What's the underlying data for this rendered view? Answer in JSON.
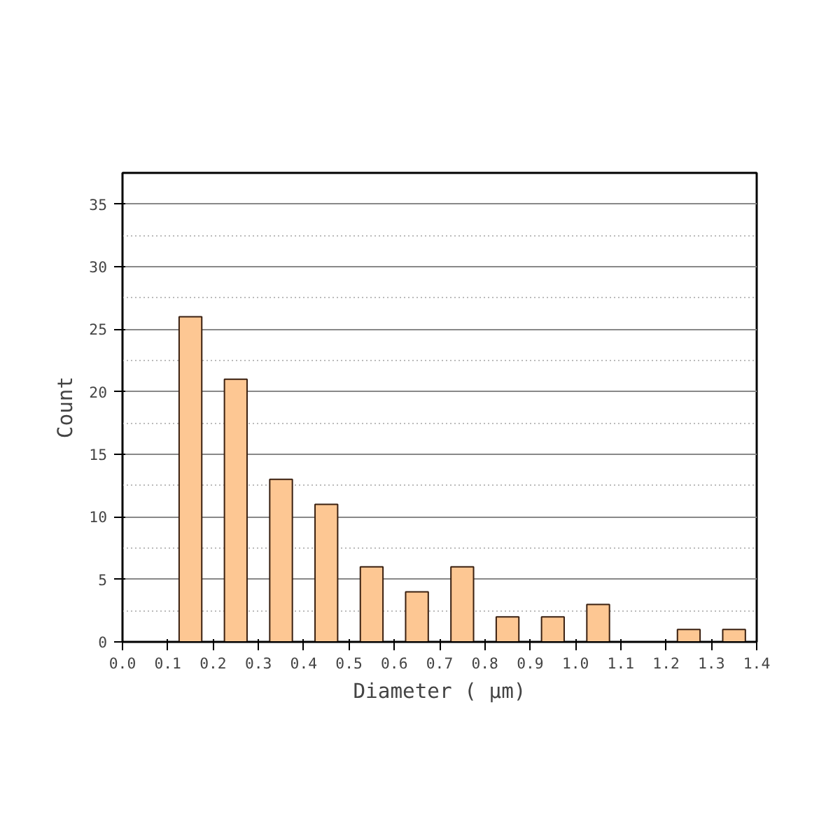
{
  "chart_data": {
    "type": "bar",
    "xlabel": "Diameter ( μm)",
    "ylabel": "Count",
    "x": [
      0.15,
      0.25,
      0.35,
      0.45,
      0.55,
      0.65,
      0.75,
      0.85,
      0.95,
      1.05,
      1.15,
      1.25,
      1.35
    ],
    "values": [
      26,
      21,
      13,
      11,
      6,
      4,
      6,
      2,
      2,
      3,
      null,
      1,
      1
    ],
    "color": "#fdc793",
    "xlim": [
      0,
      1.4
    ],
    "xticks": [
      {
        "value": 0,
        "label": "0.0"
      },
      0.1,
      0.2,
      0.3,
      0.4,
      0.5,
      0.6,
      0.7,
      0.8,
      0.9,
      {
        "value": 1,
        "label": "1.0"
      },
      1.1,
      1.2,
      1.3,
      1.4
    ],
    "ylim": [
      0,
      37.5
    ],
    "yticks": [
      0,
      5,
      10,
      15,
      20,
      25,
      30,
      35
    ],
    "grid": "y"
  }
}
